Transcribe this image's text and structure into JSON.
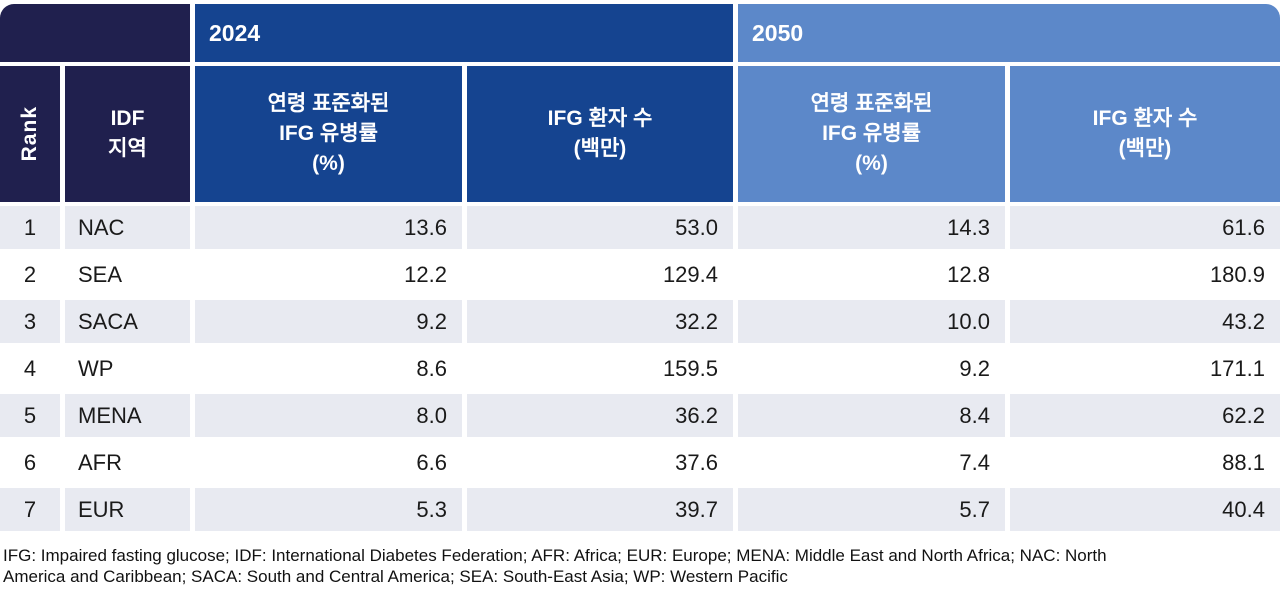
{
  "colors": {
    "navy": "#20204e",
    "blue2024": "#154490",
    "blue2050": "#5c88c9",
    "stripe": "#e8eaf1"
  },
  "table": {
    "year_left": "2024",
    "year_right": "2050",
    "headers": {
      "rank": "Rank",
      "region_line1": "IDF",
      "region_line2": "지역",
      "prev_line1": "연령 표준화된",
      "prev_line2": "IFG 유병률",
      "prev_line3": "(%)",
      "count_line1": "IFG 환자 수",
      "count_line2": "(백만)"
    },
    "rows": [
      {
        "rank": "1",
        "region": "NAC",
        "p2024": "13.6",
        "n2024": "53.0",
        "p2050": "14.3",
        "n2050": "61.6"
      },
      {
        "rank": "2",
        "region": "SEA",
        "p2024": "12.2",
        "n2024": "129.4",
        "p2050": "12.8",
        "n2050": "180.9"
      },
      {
        "rank": "3",
        "region": "SACA",
        "p2024": "9.2",
        "n2024": "32.2",
        "p2050": "10.0",
        "n2050": "43.2"
      },
      {
        "rank": "4",
        "region": "WP",
        "p2024": "8.6",
        "n2024": "159.5",
        "p2050": "9.2",
        "n2050": "171.1"
      },
      {
        "rank": "5",
        "region": "MENA",
        "p2024": "8.0",
        "n2024": "36.2",
        "p2050": "8.4",
        "n2050": "62.2"
      },
      {
        "rank": "6",
        "region": "AFR",
        "p2024": "6.6",
        "n2024": "37.6",
        "p2050": "7.4",
        "n2050": "88.1"
      },
      {
        "rank": "7",
        "region": "EUR",
        "p2024": "5.3",
        "n2024": "39.7",
        "p2050": "5.7",
        "n2050": "40.4"
      }
    ],
    "footnote": "IFG: Impaired fasting glucose; IDF: International Diabetes Federation; AFR: Africa; EUR: Europe; MENA: Middle East and North Africa; NAC: North America and Caribbean; SACA: South and Central America; SEA: South-East Asia; WP: Western Pacific"
  },
  "chart_data": {
    "type": "table",
    "title": "",
    "column_groups": [
      "2024",
      "2050"
    ],
    "columns": [
      "Rank",
      "IDF 지역",
      "2024 연령 표준화된 IFG 유병률 (%)",
      "2024 IFG 환자 수 (백만)",
      "2050 연령 표준화된 IFG 유병률 (%)",
      "2050 IFG 환자 수 (백만)"
    ],
    "rows": [
      [
        1,
        "NAC",
        13.6,
        53.0,
        14.3,
        61.6
      ],
      [
        2,
        "SEA",
        12.2,
        129.4,
        12.8,
        180.9
      ],
      [
        3,
        "SACA",
        9.2,
        32.2,
        10.0,
        43.2
      ],
      [
        4,
        "WP",
        8.6,
        159.5,
        9.2,
        171.1
      ],
      [
        5,
        "MENA",
        8.0,
        36.2,
        8.4,
        62.2
      ],
      [
        6,
        "AFR",
        6.6,
        37.6,
        7.4,
        88.1
      ],
      [
        7,
        "EUR",
        5.3,
        39.7,
        5.7,
        40.4
      ]
    ],
    "footnote": "IFG: Impaired fasting glucose; IDF: International Diabetes Federation; AFR: Africa; EUR: Europe; MENA: Middle East and North Africa; NAC: North America and Caribbean; SACA: South and Central America; SEA: South-East Asia; WP: Western Pacific"
  }
}
